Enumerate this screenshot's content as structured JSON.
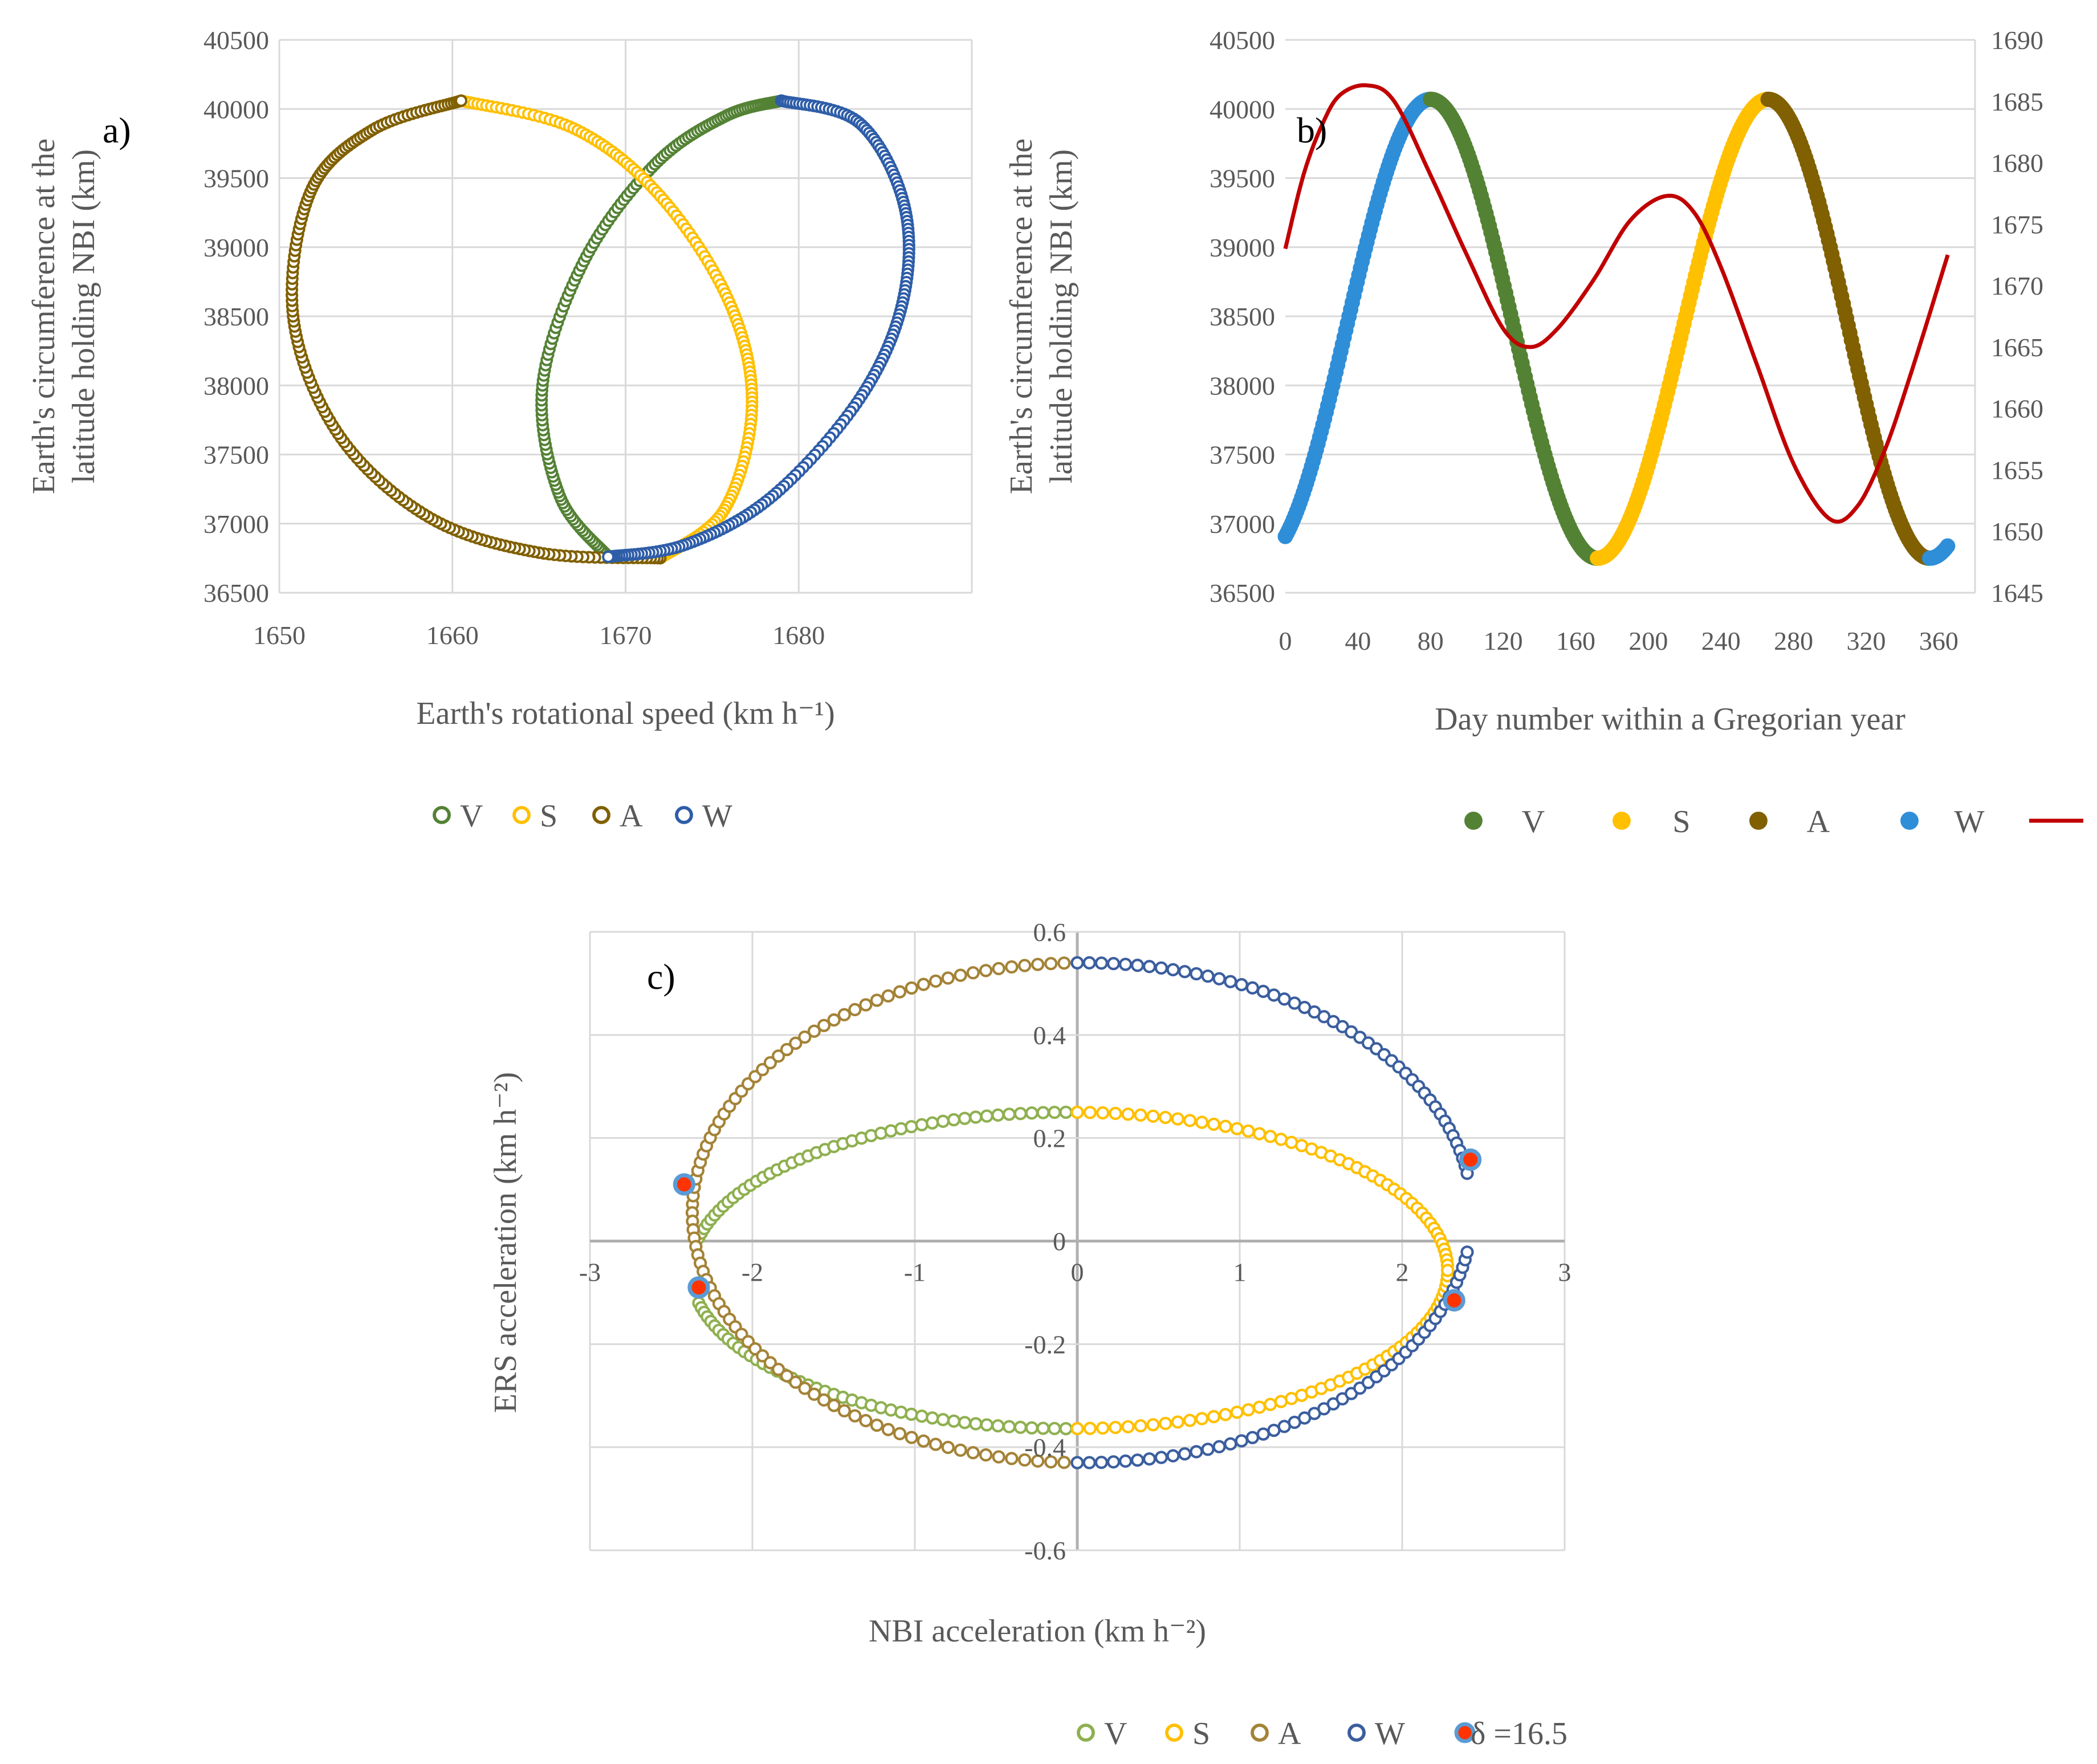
{
  "colors": {
    "V": "#548235",
    "V_light": "#8fb050",
    "S": "#ffc000",
    "A": "#806000",
    "A_light": "#a48337",
    "W_a": "#2e5da8",
    "W_b": "#2f8ed8",
    "W_c": "#3b5e9e",
    "line": "#c00000",
    "marker_red": "#ff3300",
    "grid": "#d9d9d9"
  },
  "chart_data": [
    {
      "id": "a",
      "type": "scatter",
      "panel_label": "a)",
      "xlabel": "Earth's rotational speed  (km h⁻¹)",
      "ylabel_lines": [
        "Earth's circumference  at the",
        "latitude holding NBI  (km)"
      ],
      "xlim": [
        1650,
        1690
      ],
      "ylim": [
        36500,
        40500
      ],
      "xticks": [
        1650,
        1660,
        1670,
        1680
      ],
      "yticks": [
        36500,
        37000,
        37500,
        38000,
        38500,
        39000,
        39500,
        40000,
        40500
      ],
      "legend": [
        "V",
        "S",
        "A",
        "W"
      ],
      "series": [
        {
          "name": "V",
          "color": "V",
          "points": [
            [
              1669,
              36760
            ],
            [
              1666.2,
              37200
            ],
            [
              1665.2,
              38000
            ],
            [
              1667.6,
              38900
            ],
            [
              1671.7,
              39600
            ],
            [
              1675.8,
              39950
            ],
            [
              1679,
              40060
            ]
          ]
        },
        {
          "name": "S",
          "color": "S",
          "points": [
            [
              1660.5,
              40060
            ],
            [
              1667,
              39860
            ],
            [
              1672,
              39370
            ],
            [
              1676,
              38600
            ],
            [
              1677.3,
              37850
            ],
            [
              1675.7,
              37100
            ],
            [
              1672,
              36750
            ]
          ]
        },
        {
          "name": "A",
          "color": "A",
          "points": [
            [
              1672,
              36750
            ],
            [
              1665,
              36790
            ],
            [
              1658.6,
              37050
            ],
            [
              1653.4,
              37650
            ],
            [
              1650.8,
              38500
            ],
            [
              1651.8,
              39400
            ],
            [
              1655.4,
              39850
            ],
            [
              1660.5,
              40060
            ]
          ]
        },
        {
          "name": "W",
          "color": "W_a",
          "points": [
            [
              1679,
              40060
            ],
            [
              1683.5,
              39900
            ],
            [
              1686.1,
              39300
            ],
            [
              1686,
              38600
            ],
            [
              1683.5,
              37900
            ],
            [
              1678.5,
              37200
            ],
            [
              1673.5,
              36850
            ],
            [
              1669,
              36760
            ]
          ]
        }
      ]
    },
    {
      "id": "b",
      "type": "line",
      "panel_label": "b)",
      "xlabel": "Day number within a Gregorian year",
      "ylabel_lines": [
        "Earth's circumference  at the",
        "latitude holding NBI  (km)"
      ],
      "xlim": [
        0,
        380
      ],
      "ylim": [
        36500,
        40500
      ],
      "y2lim": [
        1645,
        1690
      ],
      "xticks": [
        0,
        40,
        80,
        120,
        160,
        200,
        240,
        280,
        320,
        360
      ],
      "yticks": [
        36500,
        37000,
        37500,
        38000,
        38500,
        39000,
        39500,
        40000,
        40500
      ],
      "y2ticks": [
        1645,
        1650,
        1655,
        1660,
        1665,
        1670,
        1675,
        1680,
        1685,
        1690
      ],
      "legend": [
        "V",
        "S",
        "A",
        "W",
        ""
      ],
      "circumference_segments": [
        {
          "name": "W",
          "color": "W_b",
          "days": [
            0,
            80
          ]
        },
        {
          "name": "V",
          "color": "V",
          "days": [
            80,
            172
          ]
        },
        {
          "name": "S",
          "color": "S",
          "days": [
            172,
            266
          ]
        },
        {
          "name": "A",
          "color": "A",
          "days": [
            266,
            355
          ]
        },
        {
          "name": "W",
          "color": "W_b",
          "days": [
            355,
            365
          ]
        }
      ],
      "circumference_model": {
        "mean": 38410,
        "amplitude": 1660,
        "peak_days": [
          80,
          266
        ],
        "trough_days": [
          172,
          355
        ]
      },
      "speed_line": {
        "color": "line",
        "points": [
          [
            0,
            1673
          ],
          [
            10,
            1679
          ],
          [
            20,
            1683
          ],
          [
            30,
            1685.5
          ],
          [
            45,
            1686.3
          ],
          [
            60,
            1685
          ],
          [
            80,
            1679
          ],
          [
            100,
            1672.5
          ],
          [
            120,
            1666.5
          ],
          [
            135,
            1665
          ],
          [
            150,
            1666.5
          ],
          [
            170,
            1670.5
          ],
          [
            190,
            1675.3
          ],
          [
            210,
            1677.3
          ],
          [
            225,
            1676
          ],
          [
            240,
            1671.5
          ],
          [
            260,
            1663.5
          ],
          [
            280,
            1655.5
          ],
          [
            300,
            1651
          ],
          [
            315,
            1652
          ],
          [
            330,
            1656.5
          ],
          [
            345,
            1663
          ],
          [
            365,
            1672.5
          ]
        ]
      }
    },
    {
      "id": "c",
      "type": "scatter",
      "panel_label": "c)",
      "xlabel": "NBI acceleration  (km h⁻²)",
      "ylabel": "ERS  acceleration (km h⁻²)",
      "xlim": [
        -3,
        3
      ],
      "ylim": [
        -0.6,
        0.6
      ],
      "xticks": [
        -3,
        -2,
        -1,
        0,
        1,
        2,
        3
      ],
      "yticks": [
        -0.6,
        -0.4,
        -0.2,
        0,
        0.2,
        0.4,
        0.6
      ],
      "legend": [
        "V",
        "S",
        "A",
        "W",
        "δ =16.5"
      ],
      "inner_ellipse": {
        "center": [
          -0.05,
          -0.057
        ],
        "rx": 2.33,
        "ry": 0.307
      },
      "outer_ellipse": {
        "center": [
          0.03,
          0.055
        ],
        "rx": 2.4,
        "ry": 0.485
      },
      "series": [
        {
          "name": "V",
          "color": "V_light",
          "ring": "inner",
          "x_range": [
            -2.33,
            0
          ],
          "side": "both"
        },
        {
          "name": "S",
          "color": "S",
          "ring": "inner",
          "x_range": [
            0,
            2.33
          ],
          "side": "both"
        },
        {
          "name": "A",
          "color": "A_light",
          "ring": "outer",
          "x_range": [
            -2.4,
            0
          ],
          "side": "both"
        },
        {
          "name": "W",
          "color": "W_c",
          "ring": "outer",
          "x_range": [
            0,
            2.4
          ],
          "side": "both"
        }
      ],
      "delta_points": [
        [
          -2.42,
          0.11
        ],
        [
          -2.33,
          -0.09
        ],
        [
          2.32,
          -0.115
        ],
        [
          2.42,
          0.158
        ]
      ]
    }
  ]
}
